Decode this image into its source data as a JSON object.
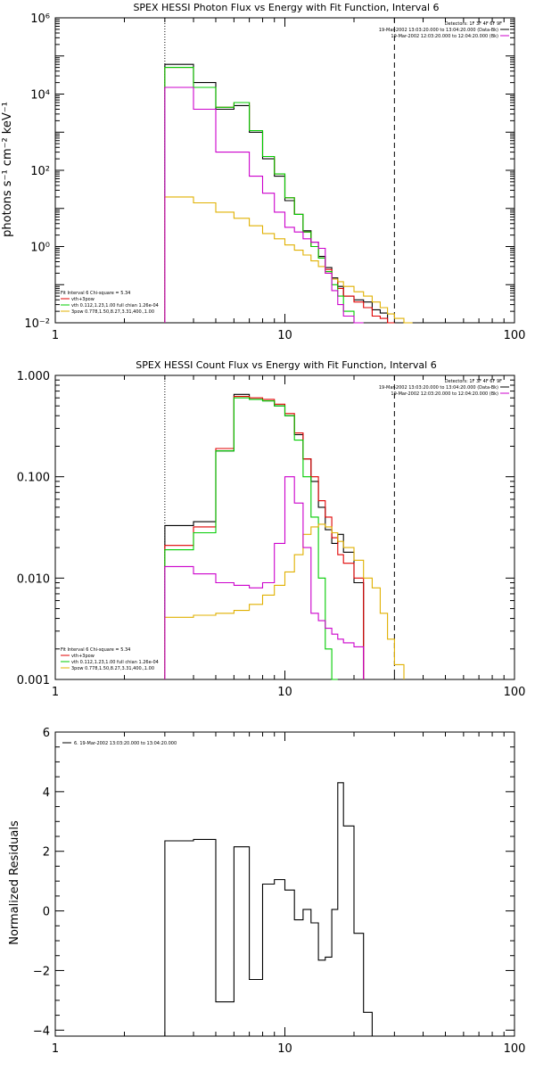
{
  "colors": {
    "black": "#000000",
    "red": "#e00000",
    "green": "#00cc00",
    "magenta": "#cc00cc",
    "orange": "#e0b000"
  },
  "chart_data": [
    {
      "type": "line",
      "title": "SPEX HESSI Photon Flux vs Energy with Fit Function, Interval 6",
      "xlabel": "",
      "ylabel": "photons s⁻¹ cm⁻² keV⁻¹",
      "xscale": "log",
      "yscale": "log",
      "xlim": [
        1,
        100
      ],
      "ylim": [
        0.01,
        1000000
      ],
      "x_ticks": [
        {
          "v": 1,
          "label": "1"
        },
        {
          "v": 10,
          "label": "10"
        },
        {
          "v": 100,
          "label": "100"
        }
      ],
      "y_ticks": [
        {
          "v": 0.01,
          "label": "10⁻²"
        },
        {
          "v": 1,
          "label": "10⁰"
        },
        {
          "v": 100,
          "label": "10²"
        },
        {
          "v": 10000,
          "label": "10⁴"
        },
        {
          "v": 1000000,
          "label": "10⁶"
        }
      ],
      "vlines": [
        {
          "x": 3,
          "style": "dotted"
        },
        {
          "x": 30,
          "style": "dashed"
        }
      ],
      "bin_edges": [
        3,
        4,
        5,
        6,
        7,
        8,
        9,
        10,
        11,
        12,
        13,
        14,
        15,
        16,
        17,
        18,
        20,
        22,
        24,
        26,
        28,
        30,
        33,
        36,
        39,
        43,
        47,
        51
      ],
      "series": [
        {
          "name": "",
          "color": "black",
          "values": [
            60000,
            20000,
            4000,
            5000,
            1000,
            200,
            70,
            16,
            7,
            2.6,
            1.3,
            0.55,
            0.28,
            0.15,
            0.09,
            0.05,
            0.04,
            0.035,
            0.022,
            0.018
          ]
        },
        {
          "name": "vth+3pow",
          "color": "red",
          "values": [
            50000,
            15000,
            4500,
            6000,
            1100,
            230,
            80,
            19,
            7,
            2.4,
            1.0,
            0.5,
            0.25,
            0.14,
            0.08,
            0.05,
            0.035,
            0.025,
            0.015,
            0.013,
            0.01
          ]
        },
        {
          "name": "vth 0.112,1.23,1.00  full chian 1.26e-04",
          "color": "green",
          "values": [
            50000,
            15000,
            4500,
            6000,
            1100,
            230,
            80,
            19,
            7,
            2.4,
            1.0,
            0.5,
            0.22,
            0.1,
            0.05,
            0.02,
            0.01
          ]
        },
        {
          "name": "3pow 0.778,1.50,8.27,3.31,400.,1.00",
          "color": "orange",
          "values": [
            20,
            14,
            8,
            5.5,
            3.5,
            2.2,
            1.6,
            1.1,
            0.8,
            0.6,
            0.42,
            0.3,
            0.2,
            0.14,
            0.12,
            0.09,
            0.065,
            0.05,
            0.035,
            0.025,
            0.017,
            0.013,
            0.009
          ]
        },
        {
          "name": "",
          "color": "magenta",
          "values": [
            15000,
            4000,
            300,
            300,
            70,
            25,
            8,
            3.2,
            2.4,
            1.6,
            1.3,
            0.9,
            0.2,
            0.07,
            0.03,
            0.015,
            0.01
          ]
        }
      ],
      "legend_tr": {
        "detectors": "Detectors: 1F 3F 4F 6F 9F",
        "entries": [
          {
            "text": "19-Mar-2002 13:03:20.000 to 13:04:20.000 (Data-Bk)",
            "color": "black"
          },
          {
            "text": "19-Mar-2002 12:03:20.000 to 12:04:20.000 (Bk)",
            "color": "magenta"
          }
        ]
      },
      "legend_bl": {
        "title": "Fit Interval 6   Chi-square = 5.34",
        "entries": [
          {
            "text": "vth+3pow",
            "color": "red"
          },
          {
            "text": "vth 0.112,1.23,1.00  full chian 1.26e-04",
            "color": "green"
          },
          {
            "text": "3pow 0.778,1.50,8.27,3.31,400.,1.00",
            "color": "orange"
          }
        ]
      }
    },
    {
      "type": "line",
      "title": "SPEX HESSI Count Flux vs Energy with Fit Function, Interval 6",
      "xlabel": "",
      "ylabel": "",
      "xscale": "log",
      "yscale": "log",
      "xlim": [
        1,
        100
      ],
      "ylim": [
        0.001,
        1
      ],
      "x_ticks": [
        {
          "v": 1,
          "label": "1"
        },
        {
          "v": 10,
          "label": "10"
        },
        {
          "v": 100,
          "label": "100"
        }
      ],
      "y_ticks": [
        {
          "v": 0.001,
          "label": "0.001"
        },
        {
          "v": 0.01,
          "label": "0.010"
        },
        {
          "v": 0.1,
          "label": "0.100"
        },
        {
          "v": 1,
          "label": "1.000"
        }
      ],
      "vlines": [
        {
          "x": 3,
          "style": "dotted"
        },
        {
          "x": 30,
          "style": "dashed"
        }
      ],
      "bin_edges": [
        3,
        4,
        5,
        6,
        7,
        8,
        9,
        10,
        11,
        12,
        13,
        14,
        15,
        16,
        17,
        18,
        20,
        22,
        24,
        26,
        28,
        30,
        33,
        36,
        39,
        43,
        47,
        51
      ],
      "series": [
        {
          "name": "",
          "color": "black",
          "values": [
            0.033,
            0.036,
            0.18,
            0.65,
            0.58,
            0.56,
            0.5,
            0.4,
            0.26,
            0.15,
            0.09,
            0.05,
            0.03,
            0.022,
            0.027,
            0.018,
            0.009
          ]
        },
        {
          "name": "vth+3pow",
          "color": "red",
          "values": [
            0.021,
            0.032,
            0.19,
            0.62,
            0.6,
            0.58,
            0.52,
            0.42,
            0.27,
            0.15,
            0.1,
            0.058,
            0.04,
            0.025,
            0.017,
            0.014,
            0.01
          ]
        },
        {
          "name": "vth 0.112,1.23,1.00  full chian 1.26e-04",
          "color": "green",
          "values": [
            0.019,
            0.028,
            0.18,
            0.6,
            0.58,
            0.56,
            0.5,
            0.4,
            0.23,
            0.1,
            0.04,
            0.01,
            0.002,
            0.001
          ]
        },
        {
          "name": "3pow 0.778,1.50,8.27,3.31,400.,1.00",
          "color": "orange",
          "values": [
            0.0041,
            0.0043,
            0.0045,
            0.0048,
            0.0055,
            0.0068,
            0.0085,
            0.0115,
            0.017,
            0.027,
            0.032,
            0.034,
            0.032,
            0.028,
            0.023,
            0.02,
            0.015,
            0.01,
            0.008,
            0.0045,
            0.0025,
            0.0014
          ]
        },
        {
          "name": "",
          "color": "magenta",
          "values": [
            0.013,
            0.011,
            0.009,
            0.0085,
            0.008,
            0.009,
            0.022,
            0.1,
            0.055,
            0.02,
            0.0045,
            0.0038,
            0.0032,
            0.0028,
            0.0025,
            0.0023,
            0.0021
          ]
        }
      ],
      "legend_tr": {
        "detectors": "Detectors: 1F 3F 4F 6F 9F",
        "entries": [
          {
            "text": "19-Mar-2002 13:03:20.000 to 13:04:20.000 (Data-Bk)",
            "color": "black"
          },
          {
            "text": "19-Mar-2002 12:03:20.000 to 12:04:20.000 (Bk)",
            "color": "magenta"
          }
        ]
      },
      "legend_bl": {
        "title": "Fit Interval 6   Chi-square = 5.34",
        "entries": [
          {
            "text": "vth+3pow",
            "color": "red"
          },
          {
            "text": "vth 0.112,1.23,1.00  full chian 1.26e-04",
            "color": "green"
          },
          {
            "text": "3pow 0.778,1.50,8.27,3.31,400.,1.00",
            "color": "orange"
          }
        ]
      }
    },
    {
      "type": "line",
      "title": "",
      "xlabel": "",
      "ylabel": "Normalized Residuals",
      "xscale": "log",
      "yscale": "linear",
      "xlim": [
        1,
        100
      ],
      "ylim": [
        -4.2,
        6
      ],
      "x_ticks": [
        {
          "v": 1,
          "label": "1"
        },
        {
          "v": 10,
          "label": "10"
        },
        {
          "v": 100,
          "label": "100"
        }
      ],
      "y_ticks": [
        {
          "v": -4,
          "label": "−4"
        },
        {
          "v": -2,
          "label": "−2"
        },
        {
          "v": 0,
          "label": "0"
        },
        {
          "v": 2,
          "label": "2"
        },
        {
          "v": 4,
          "label": "4"
        },
        {
          "v": 6,
          "label": "6"
        }
      ],
      "bin_edges": [
        3,
        4,
        5,
        6,
        7,
        8,
        9,
        10,
        11,
        12,
        13,
        14,
        15,
        16,
        17,
        18,
        20,
        22,
        24,
        26,
        28,
        30
      ],
      "series": [
        {
          "name": "6. 19-Mar-2002 13:03:20.000 to 13:04:20.000",
          "color": "black",
          "values": [
            2.35,
            2.4,
            -3.05,
            2.15,
            -2.3,
            0.9,
            1.05,
            0.7,
            -0.3,
            0.05,
            -0.4,
            -1.65,
            -1.55,
            0.05,
            4.3,
            2.85,
            -0.75,
            -3.4
          ]
        }
      ],
      "legend_tl": {
        "entries": [
          {
            "text": "6. 19-Mar-2002 13:03:20.000 to 13:04:20.000",
            "color": "black"
          }
        ]
      }
    }
  ]
}
